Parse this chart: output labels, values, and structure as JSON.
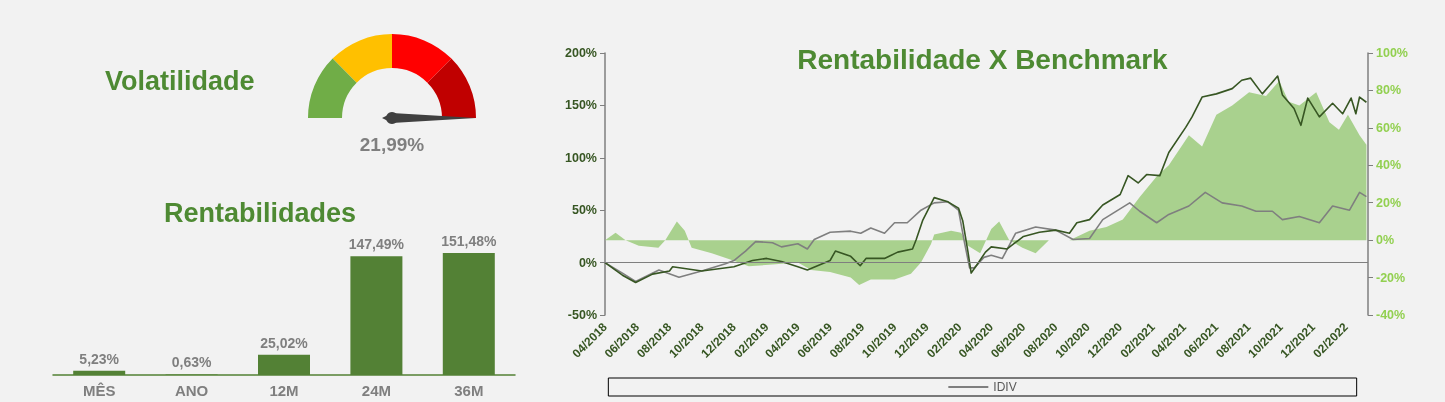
{
  "chart_data": [
    {
      "type": "other",
      "title": "Volatilidade",
      "values": [
        21.99
      ],
      "value_labels": [
        "21,99%"
      ],
      "color": "#404040"
    },
    {
      "type": "bar",
      "title": "Rentabilidades",
      "categories": [
        "MÊS",
        "ANO",
        "12M",
        "24M",
        "36M"
      ],
      "values": [
        5.23,
        0.63,
        25.02,
        147.49,
        151.48
      ],
      "color": "#538135",
      "value_labels": [
        "5,23%",
        "0,63%",
        "25,02%",
        "147,49%",
        "151,48%"
      ]
    },
    {
      "type": "line",
      "title": "Rentabilidade X Benchmark",
      "marker": "none",
      "grid": false,
      "legend": "bottom",
      "xlim": [
        "2018-04-01",
        "2022-03-15"
      ],
      "xticks": [
        {
          "value": "2018-04",
          "label": "04/2018"
        },
        {
          "value": "2018-06",
          "label": "06/2018"
        },
        {
          "value": "2018-08",
          "label": "08/2018"
        },
        {
          "value": "2018-10",
          "label": "10/2018"
        },
        {
          "value": "2018-12",
          "label": "12/2018"
        },
        {
          "value": "2019-02",
          "label": "02/2019"
        },
        {
          "value": "2019-04",
          "label": "04/2019"
        },
        {
          "value": "2019-06",
          "label": "06/2019"
        },
        {
          "value": "2019-08",
          "label": "08/2019"
        },
        {
          "value": "2019-10",
          "label": "10/2019"
        },
        {
          "value": "2019-12",
          "label": "12/2019"
        },
        {
          "value": "2020-02",
          "label": "02/2020"
        },
        {
          "value": "2020-04",
          "label": "04/2020"
        },
        {
          "value": "2020-06",
          "label": "06/2020"
        },
        {
          "value": "2020-08",
          "label": "08/2020"
        },
        {
          "value": "2020-10",
          "label": "10/2020"
        },
        {
          "value": "2020-12",
          "label": "12/2020"
        },
        {
          "value": "2021-02",
          "label": "02/2021"
        },
        {
          "value": "2021-04",
          "label": "04/2021"
        },
        {
          "value": "2021-06",
          "label": "06/2021"
        },
        {
          "value": "2021-08",
          "label": "08/2021"
        },
        {
          "value": "2021-10",
          "label": "10/2021"
        },
        {
          "value": "2021-12",
          "label": "12/2021"
        },
        {
          "value": "2022-02",
          "label": "02/2022"
        }
      ],
      "ylim": [
        -50,
        200
      ],
      "yticks": [
        {
          "value": -50,
          "label": "-50%"
        },
        {
          "value": 0,
          "label": "0%"
        },
        {
          "value": 50,
          "label": "50%"
        },
        {
          "value": 100,
          "label": "100%"
        },
        {
          "value": 150,
          "label": "150%"
        },
        {
          "value": 200,
          "label": "200%"
        }
      ],
      "y2lim": [
        -40,
        100
      ],
      "y2ticks": [
        {
          "value": -40,
          "label": "-40%"
        },
        {
          "value": -20,
          "label": "-20%"
        },
        {
          "value": 0,
          "label": "0%"
        },
        {
          "value": 20,
          "label": "20%"
        },
        {
          "value": 40,
          "label": "40%"
        },
        {
          "value": 60,
          "label": "60%"
        },
        {
          "value": 80,
          "label": "80%"
        },
        {
          "value": 100,
          "label": "100%"
        }
      ],
      "ref_lines": [
        {
          "axis": "y",
          "value": 0,
          "color": "#7f7f7f"
        }
      ],
      "series": [
        {
          "type": "area",
          "axis": "y2",
          "color": "#a9d18e",
          "x": [
            "2018-04-01",
            "2018-04-21",
            "2018-05-10",
            "2018-06-04",
            "2018-07-11",
            "2018-07-24",
            "2018-08-15",
            "2018-08-30",
            "2018-09-12",
            "2018-10-20",
            "2018-12-01",
            "2018-12-29",
            "2019-02-12",
            "2019-04-01",
            "2019-04-26",
            "2019-06-01",
            "2019-07-10",
            "2019-07-26",
            "2019-08-17",
            "2019-10-01",
            "2019-11-01",
            "2019-11-20",
            "2019-12-09",
            "2019-12-15",
            "2020-01-16",
            "2020-02-04",
            "2020-02-17",
            "2020-03-11",
            "2020-04-01",
            "2020-04-16",
            "2020-05-05",
            "2020-05-30",
            "2020-06-24",
            "2020-07-19",
            "2020-08-27",
            "2020-10-04",
            "2020-11-05",
            "2020-12-06",
            "2021-01-07",
            "2021-02-08",
            "2021-03-03",
            "2021-04-10",
            "2021-05-05",
            "2021-06-01",
            "2021-07-01",
            "2021-08-02",
            "2021-09-03",
            "2021-09-28",
            "2021-10-16",
            "2021-11-05",
            "2021-12-07",
            "2022-01-01",
            "2022-01-19",
            "2022-02-05",
            "2022-02-27",
            "2022-03-12"
          ],
          "values": [
            0,
            4,
            0,
            -3,
            -4,
            0,
            10,
            5,
            -4,
            -7,
            -11,
            -14,
            -13,
            -12,
            -16,
            -17,
            -20,
            -24,
            -21,
            -21,
            -18,
            -12,
            -2,
            3,
            5,
            4,
            -3,
            -7,
            6,
            10,
            0,
            -4,
            -7,
            0,
            0,
            5,
            7,
            11,
            23,
            34,
            40,
            56,
            50,
            67,
            72,
            79,
            77,
            85,
            74,
            72,
            79,
            63,
            59,
            67,
            56,
            51
          ]
        },
        {
          "name": "IDIV",
          "color": "#7f7f7f",
          "x": [
            "2018-04-01",
            "2018-05-04",
            "2018-05-29",
            "2018-07-12",
            "2018-08-19",
            "2018-10-01",
            "2018-11-15",
            "2018-12-01",
            "2018-12-23",
            "2019-01-11",
            "2019-02-12",
            "2019-03-01",
            "2019-04-01",
            "2019-04-19",
            "2019-05-02",
            "2019-06-01",
            "2019-07-10",
            "2019-07-29",
            "2019-08-17",
            "2019-09-12",
            "2019-10-01",
            "2019-10-25",
            "2019-11-20",
            "2019-12-15",
            "2020-01-10",
            "2020-01-30",
            "2020-02-10",
            "2020-02-20",
            "2020-02-29",
            "2020-03-18",
            "2020-04-01",
            "2020-04-22",
            "2020-05-17",
            "2020-06-24",
            "2020-08-01",
            "2020-09-03",
            "2020-10-04",
            "2020-10-29",
            "2020-12-19",
            "2021-01-07",
            "2021-02-08",
            "2021-03-03",
            "2021-04-10",
            "2021-05-11",
            "2021-06-12",
            "2021-07-19",
            "2021-08-15",
            "2021-09-15",
            "2021-10-04",
            "2021-11-05",
            "2021-12-13",
            "2022-01-07",
            "2022-02-08",
            "2022-02-27",
            "2022-03-12"
          ],
          "values": [
            0,
            -10,
            -18,
            -7,
            -14,
            -8,
            -1,
            2,
            11,
            20,
            19,
            15,
            18,
            13,
            22,
            29,
            30,
            28,
            33,
            28,
            38,
            38,
            50,
            57,
            58,
            50,
            20,
            -5,
            -5,
            5,
            7,
            4,
            28,
            34,
            31,
            22,
            23,
            41,
            57,
            49,
            38,
            46,
            54,
            67,
            57,
            54,
            49,
            49,
            41,
            44,
            38,
            54,
            50,
            67,
            63
          ]
        },
        {
          "color": "#375623",
          "x": [
            "2018-04-01",
            "2018-05-04",
            "2018-05-29",
            "2018-06-30",
            "2018-08-01",
            "2018-08-07",
            "2018-10-01",
            "2018-12-01",
            "2019-01-05",
            "2019-02-01",
            "2019-03-01",
            "2019-04-01",
            "2019-04-19",
            "2019-06-01",
            "2019-06-11",
            "2019-07-10",
            "2019-07-28",
            "2019-08-08",
            "2019-09-12",
            "2019-10-07",
            "2019-11-04",
            "2019-11-11",
            "2019-11-23",
            "2019-12-15",
            "2020-01-10",
            "2020-01-30",
            "2020-02-07",
            "2020-02-17",
            "2020-02-23",
            "2020-03-05",
            "2020-03-21",
            "2020-04-01",
            "2020-05-01",
            "2020-06-01",
            "2020-07-01",
            "2020-08-01",
            "2020-08-27",
            "2020-09-10",
            "2020-10-04",
            "2020-10-29",
            "2020-12-01",
            "2020-12-16",
            "2021-01-04",
            "2021-01-20",
            "2021-02-14",
            "2021-03-03",
            "2021-04-04",
            "2021-04-16",
            "2021-05-05",
            "2021-06-01",
            "2021-07-01",
            "2021-07-19",
            "2021-08-05",
            "2021-08-27",
            "2021-09-25",
            "2021-10-04",
            "2021-10-26",
            "2021-11-08",
            "2021-11-21",
            "2021-12-13",
            "2022-01-07",
            "2022-01-26",
            "2022-02-11",
            "2022-02-20",
            "2022-02-27",
            "2022-03-12"
          ],
          "values": [
            0,
            -12,
            -19,
            -11,
            -8,
            -4,
            -8,
            -4,
            2,
            4,
            1,
            -4,
            -7,
            2,
            11,
            6,
            -3,
            4,
            4,
            10,
            13,
            22,
            40,
            62,
            58,
            52,
            40,
            10,
            -10,
            -2,
            10,
            15,
            13,
            25,
            29,
            31,
            28,
            38,
            41,
            55,
            65,
            83,
            76,
            84,
            83,
            105,
            129,
            139,
            158,
            161,
            166,
            174,
            176,
            161,
            178,
            160,
            147,
            131,
            157,
            139,
            152,
            142,
            157,
            142,
            158,
            153
          ]
        }
      ]
    }
  ]
}
